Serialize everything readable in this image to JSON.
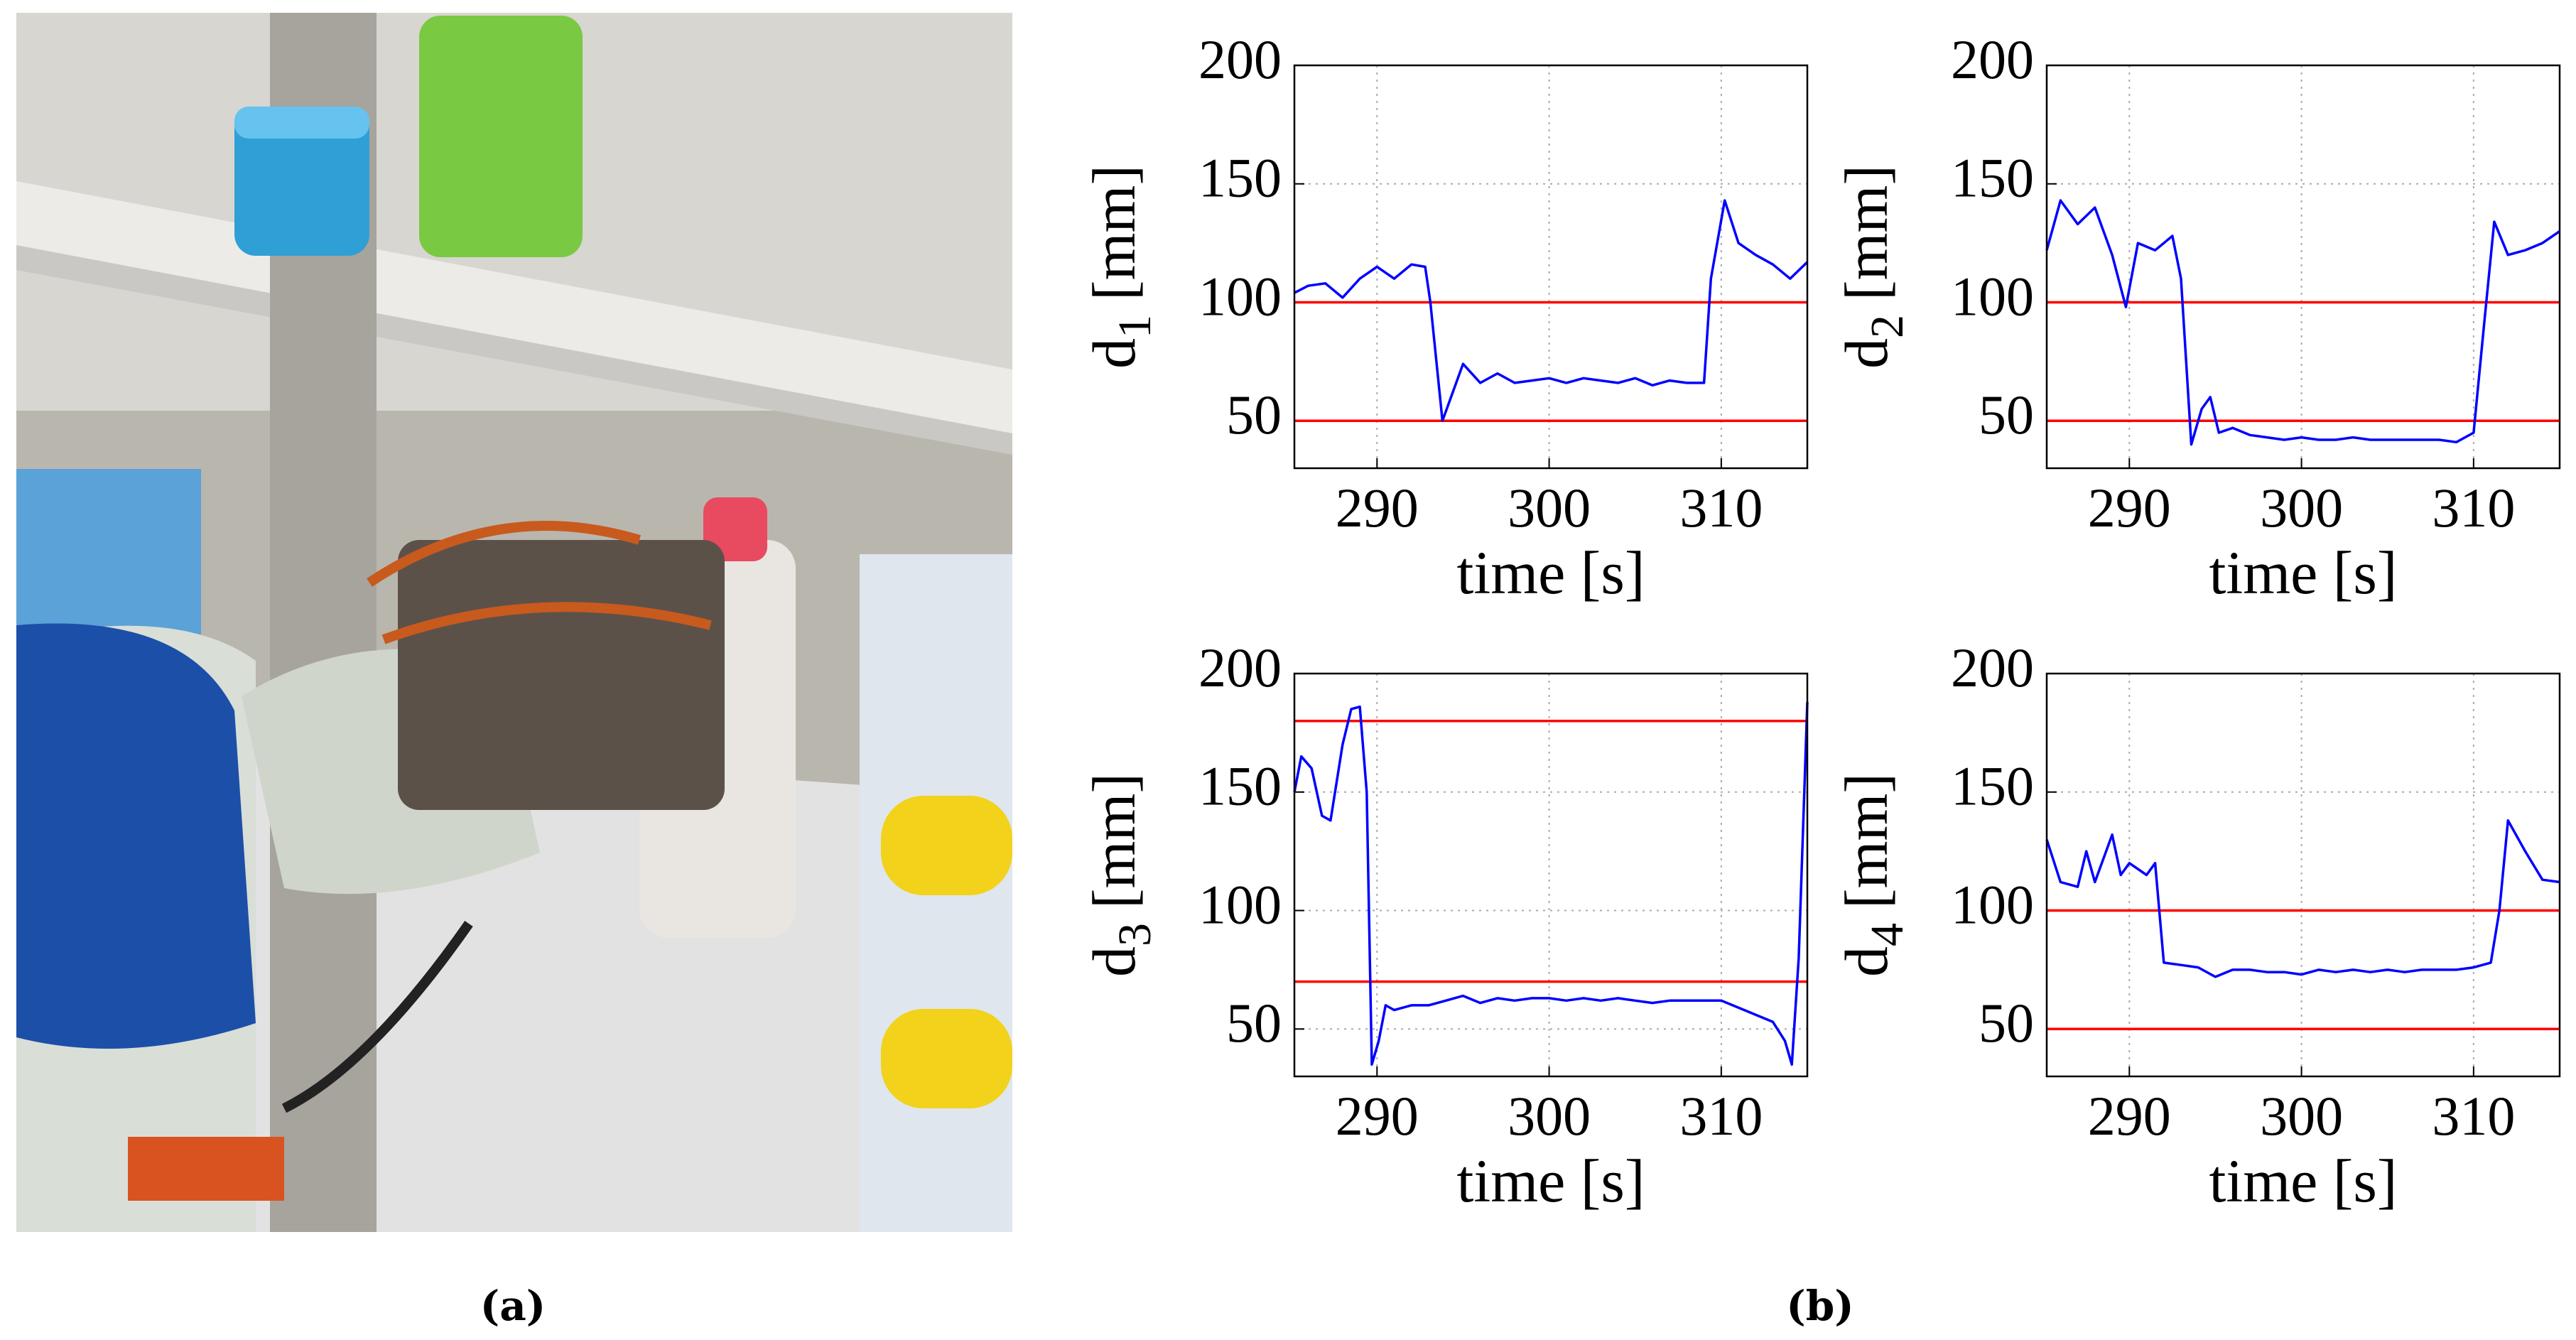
{
  "panel_labels": [
    "(a)",
    "(b)"
  ],
  "chart_data": [
    {
      "type": "line",
      "xlabel": "time [s]",
      "ylabel": {
        "base": "d",
        "sub": "1",
        "unit": "[mm]"
      },
      "xlim": [
        285.2,
        315
      ],
      "ylim": [
        30,
        200
      ],
      "xticks": [
        290,
        300,
        310
      ],
      "yticks": [
        50,
        100,
        150,
        200
      ],
      "grid": true,
      "hlines": {
        "color": "#ff0000",
        "values": [
          50,
          100
        ]
      },
      "x": [
        285.2,
        286,
        287,
        288,
        289,
        290,
        291,
        292,
        292.8,
        293.1,
        293.8,
        294.3,
        295,
        296,
        297,
        298,
        299,
        300,
        301,
        302,
        303,
        304,
        305,
        306,
        307,
        308,
        309,
        309.4,
        310.2,
        311,
        312,
        313,
        314,
        315
      ],
      "series": [
        {
          "color": "#0000ff",
          "values": [
            104,
            107,
            108,
            102,
            110,
            115,
            110,
            116,
            115,
            100,
            50,
            60,
            74,
            66,
            70,
            66,
            67,
            68,
            66,
            68,
            67,
            66,
            68,
            65,
            67,
            66,
            66,
            110,
            143,
            125,
            120,
            116,
            110,
            117
          ]
        }
      ]
    },
    {
      "type": "line",
      "xlabel": "time [s]",
      "ylabel": {
        "base": "d",
        "sub": "2",
        "unit": "[mm]"
      },
      "xlim": [
        285.2,
        315
      ],
      "ylim": [
        30,
        200
      ],
      "xticks": [
        290,
        300,
        310
      ],
      "yticks": [
        50,
        100,
        150,
        200
      ],
      "grid": true,
      "hlines": {
        "color": "#ff0000",
        "values": [
          50,
          100
        ]
      },
      "x": [
        285.2,
        286,
        287,
        288,
        289,
        289.8,
        290.5,
        291.5,
        292.5,
        293,
        293.6,
        294.2,
        294.7,
        295.2,
        296,
        297,
        298,
        299,
        300,
        301,
        302,
        303,
        304,
        305,
        306,
        307,
        308,
        309,
        310,
        310.6,
        311.2,
        312,
        313,
        314,
        315
      ],
      "series": [
        {
          "color": "#0000ff",
          "values": [
            122,
            143,
            133,
            140,
            120,
            98,
            125,
            122,
            128,
            110,
            40,
            55,
            60,
            45,
            47,
            44,
            43,
            42,
            43,
            42,
            42,
            43,
            42,
            42,
            42,
            42,
            42,
            41,
            45,
            90,
            134,
            120,
            122,
            125,
            130
          ]
        }
      ]
    },
    {
      "type": "line",
      "xlabel": "time [s]",
      "ylabel": {
        "base": "d",
        "sub": "3",
        "unit": "[mm]"
      },
      "xlim": [
        285.2,
        315
      ],
      "ylim": [
        30,
        200
      ],
      "xticks": [
        290,
        300,
        310
      ],
      "yticks": [
        50,
        100,
        150,
        200
      ],
      "grid": true,
      "hlines": {
        "color": "#ff0000",
        "values": [
          70,
          180
        ]
      },
      "x": [
        285.2,
        285.6,
        286.2,
        286.8,
        287.3,
        288,
        288.5,
        289,
        289.4,
        289.7,
        290.1,
        290.5,
        291,
        292,
        293,
        294,
        295,
        296,
        297,
        298,
        299,
        300,
        301,
        302,
        303,
        304,
        305,
        306,
        307,
        308,
        309,
        310,
        311,
        312,
        313,
        313.7,
        314.1,
        314.5,
        315
      ],
      "series": [
        {
          "color": "#0000ff",
          "values": [
            150,
            165,
            160,
            140,
            138,
            170,
            185,
            186,
            150,
            35,
            45,
            60,
            58,
            60,
            60,
            62,
            64,
            61,
            63,
            62,
            63,
            63,
            62,
            63,
            62,
            63,
            62,
            61,
            62,
            62,
            62,
            62,
            59,
            56,
            53,
            45,
            35,
            80,
            188
          ]
        }
      ]
    },
    {
      "type": "line",
      "xlabel": "time [s]",
      "ylabel": {
        "base": "d",
        "sub": "4",
        "unit": "[mm]"
      },
      "xlim": [
        285.2,
        315
      ],
      "ylim": [
        30,
        200
      ],
      "xticks": [
        290,
        300,
        310
      ],
      "yticks": [
        50,
        100,
        150,
        200
      ],
      "grid": true,
      "hlines": {
        "color": "#ff0000",
        "values": [
          50,
          100
        ]
      },
      "x": [
        285.2,
        286,
        287,
        287.5,
        288,
        289,
        289.5,
        290,
        291,
        291.5,
        292,
        293,
        294,
        295,
        296,
        297,
        298,
        299,
        300,
        301,
        302,
        303,
        304,
        305,
        306,
        307,
        308,
        309,
        310,
        311,
        311.5,
        312,
        313,
        314,
        315
      ],
      "series": [
        {
          "color": "#0000ff",
          "values": [
            130,
            112,
            110,
            125,
            112,
            132,
            115,
            120,
            115,
            120,
            78,
            77,
            76,
            72,
            75,
            75,
            74,
            74,
            73,
            75,
            74,
            75,
            74,
            75,
            74,
            75,
            75,
            75,
            76,
            78,
            100,
            138,
            125,
            113,
            112
          ]
        }
      ]
    }
  ]
}
